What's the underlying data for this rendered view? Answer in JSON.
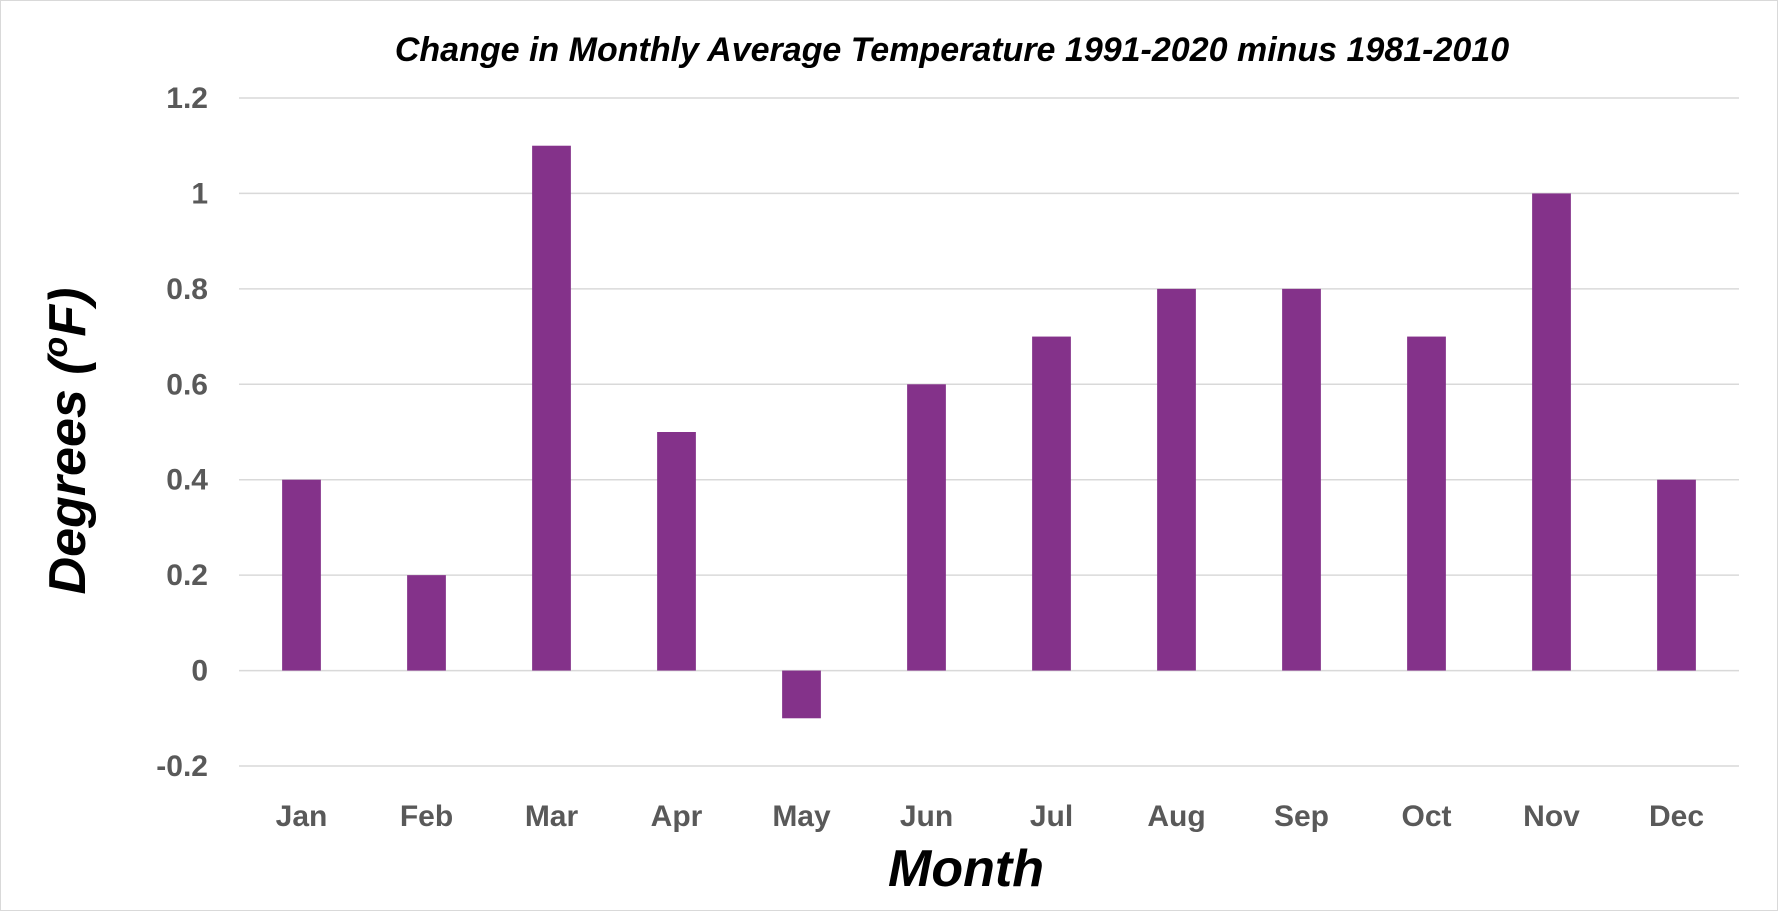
{
  "chart_data": {
    "type": "bar",
    "title": "Change in Monthly Average Temperature 1991-2020 minus 1981-2010",
    "xlabel": "Month",
    "ylabel_main": "Degrees (",
    "ylabel_sup": "o",
    "ylabel_end": "F)",
    "categories": [
      "Jan",
      "Feb",
      "Mar",
      "Apr",
      "May",
      "Jun",
      "Jul",
      "Aug",
      "Sep",
      "Oct",
      "Nov",
      "Dec"
    ],
    "values": [
      0.4,
      0.2,
      1.1,
      0.5,
      -0.1,
      0.6,
      0.7,
      0.8,
      0.8,
      0.7,
      1.0,
      0.4
    ],
    "ylim": [
      -0.2,
      1.2
    ],
    "yticks": [
      "1.2",
      "1",
      "0.8",
      "0.6",
      "0.4",
      "0.2",
      "0",
      "-0.2"
    ],
    "grid": true,
    "legend": "none",
    "bar_color": "#84328a"
  }
}
